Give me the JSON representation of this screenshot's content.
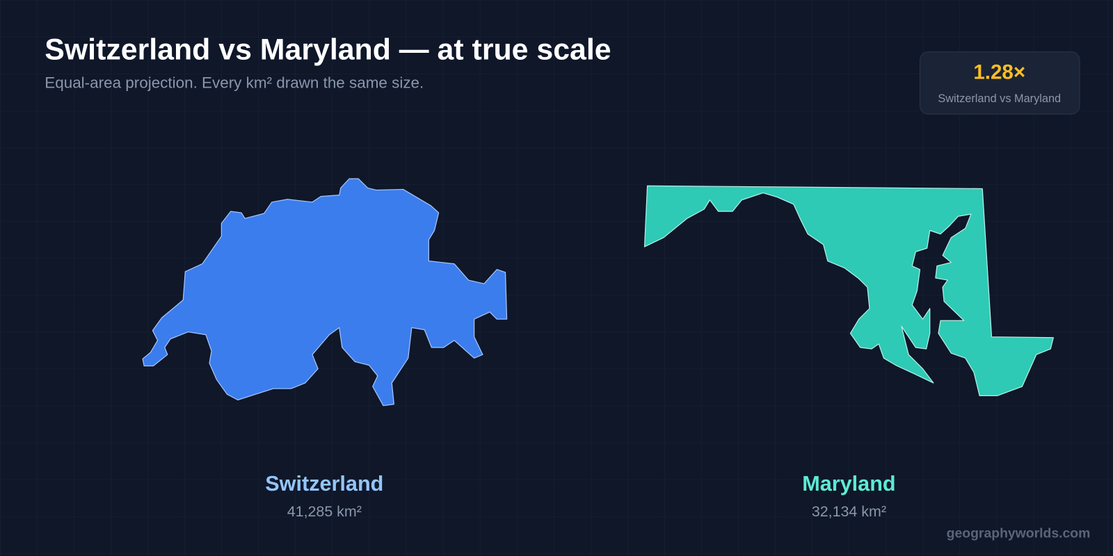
{
  "header": {
    "title": "Switzerland vs Maryland — at true scale",
    "subtitle": "Equal-area projection. Every km² drawn the same size."
  },
  "ratio": {
    "value": "1.28×",
    "label": "Switzerland vs Maryland"
  },
  "regions": [
    {
      "name": "Switzerland",
      "area": "41,285 km²"
    },
    {
      "name": "Maryland",
      "area": "32,134 km²"
    }
  ],
  "footer": {
    "watermark": "geographyworlds.com"
  }
}
